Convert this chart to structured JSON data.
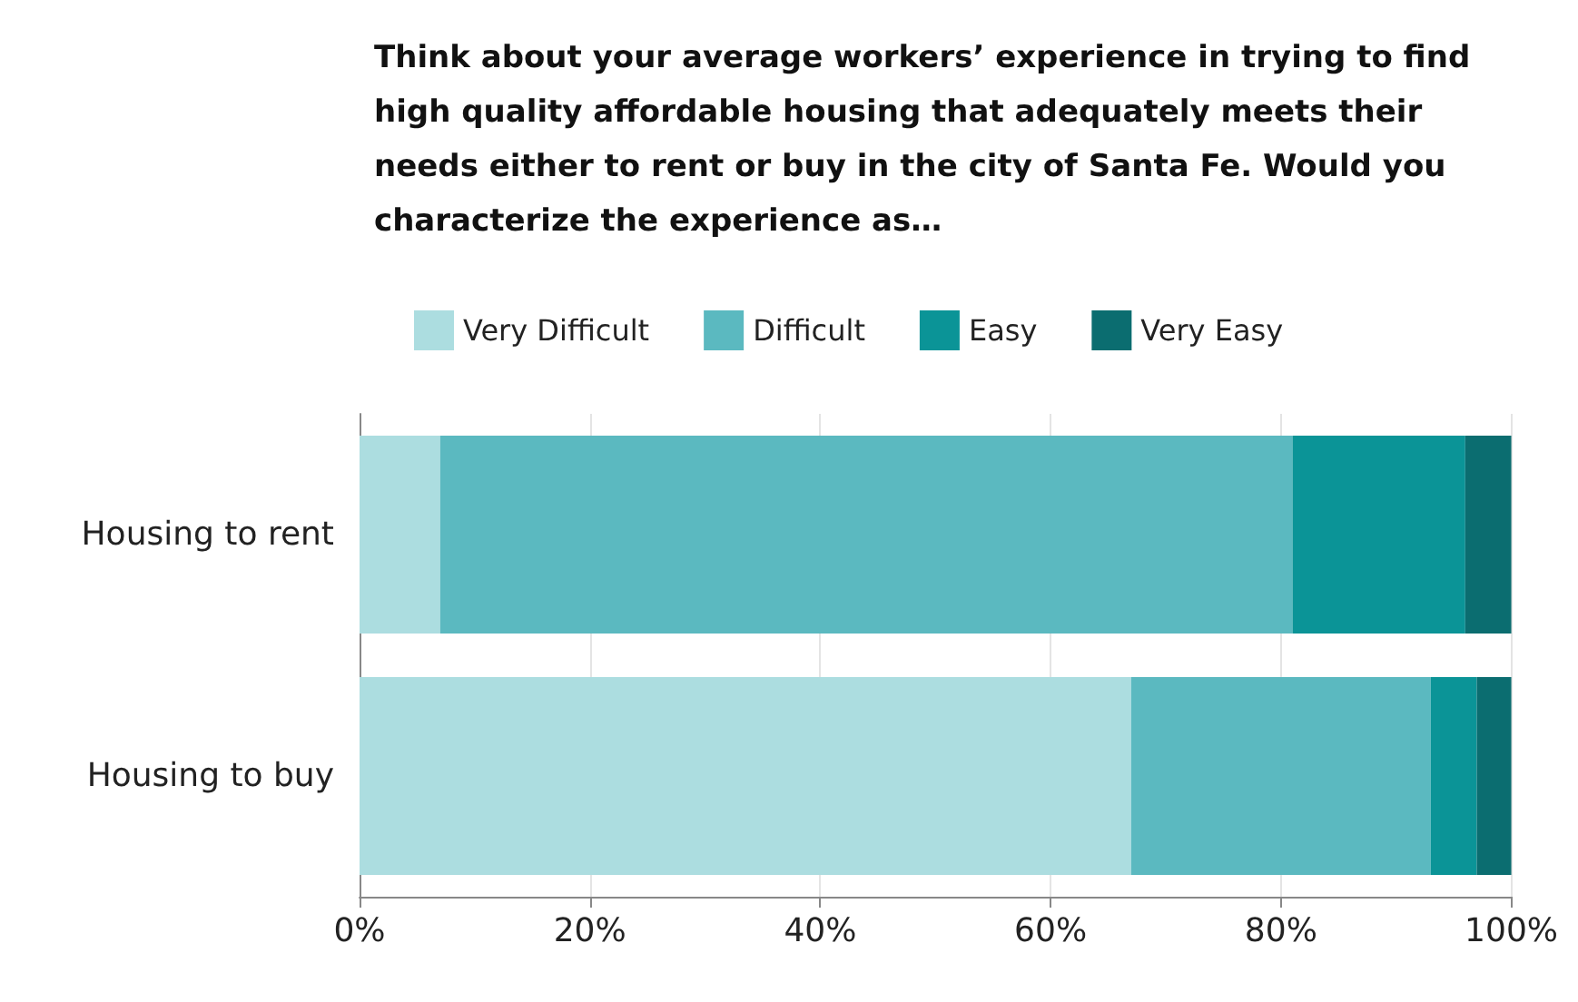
{
  "chart_data": {
    "type": "bar",
    "orientation": "horizontal",
    "stacked": true,
    "title": "Think about your average workers’ experience in trying to find high quality affordable housing that adequately meets their needs either to rent or buy in the city of Santa Fe. Would you characterize the experience as…",
    "categories": [
      "Housing to rent",
      "Housing to buy"
    ],
    "series": [
      {
        "name": "Very Difficult",
        "color": "#acdde0",
        "values": [
          7,
          67
        ]
      },
      {
        "name": "Difficult",
        "color": "#5bb9c0",
        "values": [
          74,
          26
        ]
      },
      {
        "name": "Easy",
        "color": "#0b9497",
        "values": [
          15,
          4
        ]
      },
      {
        "name": "Very Easy",
        "color": "#0b6d70",
        "values": [
          4,
          3
        ]
      }
    ],
    "xlim": [
      0,
      100
    ],
    "xticks": [
      {
        "value": 0,
        "label": "0%"
      },
      {
        "value": 20,
        "label": "20%"
      },
      {
        "value": 40,
        "label": "40%"
      },
      {
        "value": 60,
        "label": "60%"
      },
      {
        "value": 80,
        "label": "80%"
      },
      {
        "value": 100,
        "label": "100%"
      }
    ],
    "grid": "x",
    "legend": "top"
  }
}
